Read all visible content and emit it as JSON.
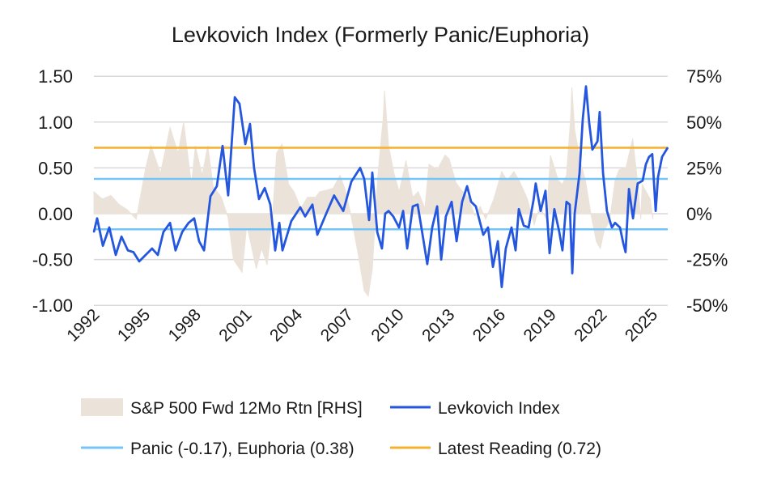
{
  "chart_data": {
    "type": "line",
    "title": "Levkovich Index (Formerly Panic/Euphoria)",
    "xlabel": "",
    "ylabel": "",
    "x_ticks": [
      "1992",
      "1995",
      "1998",
      "2001",
      "2004",
      "2007",
      "2010",
      "2013",
      "2016",
      "2019",
      "2022",
      "2025"
    ],
    "x_range": [
      1992,
      2026
    ],
    "y_left": {
      "ticks": [
        "1.50",
        "1.00",
        "0.50",
        "0.00",
        "-0.50",
        "-1.00"
      ],
      "tick_values": [
        1.5,
        1.0,
        0.5,
        0,
        -0.5,
        -1.0
      ],
      "range": [
        -1.0,
        1.5
      ]
    },
    "y_right": {
      "ticks": [
        "75%",
        "50%",
        "25%",
        "0%",
        "-25%",
        "-50%"
      ],
      "tick_values": [
        75,
        50,
        25,
        0,
        -25,
        -50
      ],
      "range": [
        -50,
        75
      ]
    },
    "grid": true,
    "legend_position": "bottom",
    "legend": {
      "sp500": "S&P 500 Fwd 12Mo Rtn [RHS]",
      "levkovich": "Levkovich Index",
      "thresholds": "Panic (-0.17), Euphoria (0.38)",
      "latest": "Latest Reading (0.72)"
    },
    "colors": {
      "sp500": "#ebe3da",
      "levkovich": "#2457de",
      "thresholds": "#74c4f7",
      "latest": "#f5b02e",
      "grid": "#d9d9d9"
    },
    "reference_lines": {
      "panic": -0.17,
      "euphoria": 0.38,
      "latest": 0.72
    },
    "series": [
      {
        "name": "S&P 500 Fwd 12Mo Rtn [RHS]",
        "axis": "right",
        "type": "area",
        "x": [
          1992.0,
          1992.5,
          1993.0,
          1993.5,
          1994.0,
          1994.5,
          1995.06,
          1995.38,
          1995.94,
          1996.5,
          1996.98,
          1997.3,
          1997.77,
          1998.0,
          1998.4,
          1998.73,
          1999.05,
          1999.53,
          1999.93,
          2000.25,
          2000.76,
          2001.04,
          2001.6,
          2001.92,
          2002.24,
          2002.56,
          2002.8,
          2003.12,
          2003.51,
          2003.83,
          2004.23,
          2004.63,
          2005.11,
          2005.35,
          2005.83,
          2006.15,
          2006.55,
          2006.86,
          2007.18,
          2007.66,
          2007.98,
          2008.22,
          2008.46,
          2008.78,
          2009.1,
          2009.18,
          2009.42,
          2009.74,
          2010.05,
          2010.45,
          2010.85,
          2011.17,
          2011.57,
          2011.81,
          2012.29,
          2012.76,
          2013.0,
          2013.4,
          2013.72,
          2014.12,
          2014.52,
          2014.84,
          2015.16,
          2015.64,
          2016.11,
          2016.43,
          2016.83,
          2017.15,
          2017.63,
          2018.03,
          2018.35,
          2018.75,
          2018.99,
          2019.46,
          2019.7,
          2019.94,
          2020.18,
          2020.26,
          2020.42,
          2020.74,
          2021.06,
          2021.38,
          2021.7,
          2021.94,
          2022.17,
          2022.49,
          2022.81,
          2023.05,
          2023.45,
          2023.85,
          2024.17,
          2024.33,
          2024.41,
          2024.89,
          2025.05
        ],
        "values": [
          12,
          8,
          10,
          5,
          2,
          -3,
          25,
          37,
          22,
          47,
          33,
          50,
          16,
          37,
          21,
          37,
          15,
          9,
          -2,
          -25,
          -32,
          -6,
          -30,
          -19,
          -28,
          -2,
          33,
          38,
          16,
          12,
          3,
          9,
          9,
          12,
          13,
          14,
          21,
          13,
          0,
          -24,
          -42,
          -45,
          -30,
          20,
          52,
          67,
          37,
          22,
          12,
          29,
          9,
          12,
          3,
          27,
          24,
          32,
          30,
          17,
          13,
          9,
          -1,
          4,
          -3,
          8,
          23,
          18,
          23,
          18,
          8,
          -6,
          4,
          -3,
          32,
          18,
          16,
          21,
          52,
          69,
          46,
          29,
          18,
          0,
          -15,
          -19,
          -9,
          -4,
          18,
          24,
          25,
          41,
          15,
          -3,
          16,
          8,
          -3
        ]
      },
      {
        "name": "Levkovich Index",
        "axis": "left",
        "type": "line",
        "x": [
          1992.0,
          1992.19,
          1992.53,
          1992.91,
          1993.29,
          1993.63,
          1994.01,
          1994.34,
          1994.68,
          1995.06,
          1995.44,
          1995.78,
          1996.11,
          1996.5,
          1996.83,
          1997.22,
          1997.6,
          1997.93,
          1998.22,
          1998.51,
          1998.89,
          1999.27,
          1999.61,
          1999.94,
          2000.33,
          2000.61,
          2000.95,
          2001.23,
          2001.47,
          2001.76,
          2002.1,
          2002.43,
          2002.72,
          2002.96,
          2003.15,
          2003.67,
          2004.2,
          2004.49,
          2004.92,
          2005.21,
          2005.73,
          2006.2,
          2006.74,
          2007.22,
          2007.74,
          2007.98,
          2008.27,
          2008.46,
          2008.75,
          2009.03,
          2009.22,
          2009.42,
          2009.7,
          2010.04,
          2010.28,
          2010.52,
          2010.85,
          2011.14,
          2011.43,
          2011.71,
          2012.0,
          2012.29,
          2012.53,
          2012.81,
          2013.15,
          2013.44,
          2013.77,
          2014.06,
          2014.3,
          2014.58,
          2015.02,
          2015.3,
          2015.59,
          2015.88,
          2016.11,
          2016.35,
          2016.69,
          2016.93,
          2017.12,
          2017.41,
          2017.7,
          2017.99,
          2018.12,
          2018.41,
          2018.7,
          2018.94,
          2019.22,
          2019.51,
          2019.7,
          2019.94,
          2020.13,
          2020.28,
          2020.42,
          2020.71,
          2020.9,
          2021.09,
          2021.28,
          2021.47,
          2021.77,
          2021.9,
          2022.1,
          2022.33,
          2022.62,
          2022.81,
          2023.1,
          2023.29,
          2023.43,
          2023.63,
          2023.87,
          2024.15,
          2024.44,
          2024.63,
          2024.82,
          2025.01,
          2025.21,
          2025.35,
          2025.59,
          2025.92
        ],
        "values": [
          -0.2,
          -0.05,
          -0.35,
          -0.15,
          -0.45,
          -0.25,
          -0.4,
          -0.42,
          -0.52,
          -0.45,
          -0.38,
          -0.45,
          -0.2,
          -0.1,
          -0.4,
          -0.2,
          -0.1,
          -0.05,
          -0.3,
          -0.4,
          0.19,
          0.3,
          0.74,
          0.2,
          1.27,
          1.2,
          0.76,
          0.98,
          0.5,
          0.16,
          0.28,
          0.1,
          -0.4,
          -0.1,
          -0.4,
          -0.08,
          0.07,
          -0.03,
          0.1,
          -0.23,
          0.0,
          0.2,
          0.03,
          0.35,
          0.5,
          0.38,
          -0.07,
          0.45,
          -0.2,
          -0.38,
          0.0,
          0.03,
          -0.03,
          -0.15,
          0.03,
          -0.38,
          0.08,
          0.1,
          -0.23,
          -0.55,
          -0.15,
          0.08,
          -0.5,
          -0.03,
          0.13,
          -0.3,
          0.13,
          0.3,
          0.13,
          0.08,
          -0.23,
          -0.15,
          -0.58,
          -0.3,
          -0.8,
          -0.38,
          -0.15,
          -0.4,
          0.05,
          -0.13,
          -0.15,
          0.15,
          0.33,
          0.03,
          0.25,
          -0.43,
          0.05,
          -0.2,
          -0.4,
          0.13,
          0.1,
          -0.65,
          0.0,
          0.44,
          1.03,
          1.39,
          0.99,
          0.7,
          0.79,
          1.11,
          0.44,
          0.03,
          -0.15,
          -0.1,
          -0.15,
          -0.32,
          -0.42,
          0.27,
          -0.05,
          0.33,
          0.36,
          0.54,
          0.62,
          0.65,
          0.03,
          0.4,
          0.62,
          0.72
        ]
      }
    ]
  }
}
